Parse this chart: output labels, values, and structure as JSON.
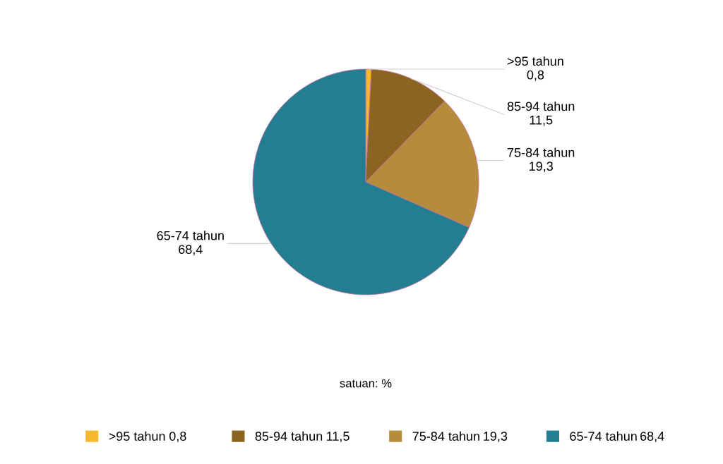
{
  "chart_data": {
    "type": "pie",
    "categories": [
      ">95 tahun",
      "85-94 tahun",
      "75-84 tahun",
      "65-74 tahun"
    ],
    "values": [
      0.8,
      11.5,
      19.3,
      68.4
    ],
    "value_labels": [
      "0,8",
      "11,5",
      "19,3",
      "68,4"
    ],
    "colors": [
      "#f5b82e",
      "#8a6420",
      "#b58b3c",
      "#237e91"
    ],
    "annotations": [
      "satuan: %"
    ],
    "legend": "bottom"
  }
}
